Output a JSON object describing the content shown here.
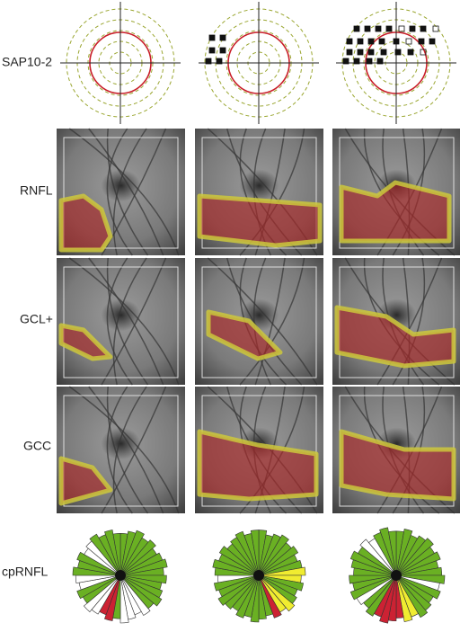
{
  "rows": {
    "sap": "SAP10-2",
    "rnfl": "RNFL",
    "gcl": "GCL+",
    "gcc": "GCC",
    "cprnfl": "cpRNFL"
  }
}
